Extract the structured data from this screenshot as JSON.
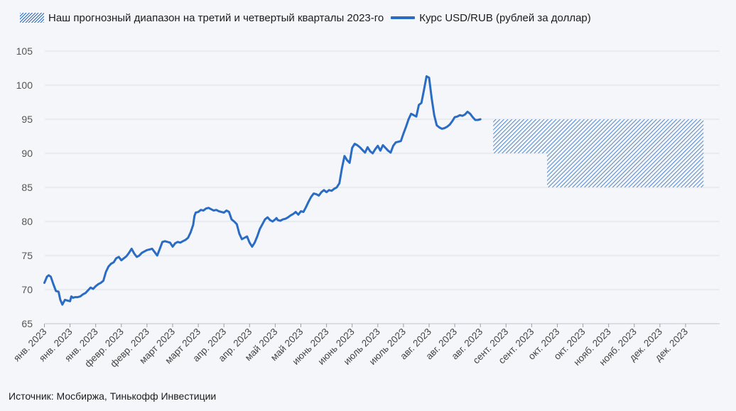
{
  "chart_data": {
    "type": "line",
    "title": "",
    "xlabel": "",
    "ylabel": "",
    "ylim": [
      65,
      105
    ],
    "yticks": [
      65,
      70,
      75,
      80,
      85,
      90,
      95,
      100,
      105
    ],
    "grid": true,
    "legend_position": "top-left",
    "x_tick_labels": [
      "янв. 2023",
      "янв. 2023",
      "янв. 2023",
      "февр. 2023",
      "февр. 2023",
      "март 2023",
      "март 2023",
      "апр. 2023",
      "апр. 2023",
      "май 2023",
      "май 2023",
      "июнь 2023",
      "июнь 2023",
      "июль 2023",
      "июль 2023",
      "авг. 2023",
      "авг. 2023",
      "авг. 2023",
      "сент. 2023",
      "сент. 2023",
      "окт. 2023",
      "окт. 2023",
      "нояб. 2023",
      "нояб. 2023",
      "дек. 2023",
      "дек. 2023"
    ],
    "series": [
      {
        "name": "Курс USD/RUB (рублей за доллар)",
        "color": "#2a6cc4",
        "x_tick": [
          0.0,
          0.1,
          0.17,
          0.25,
          0.35,
          0.45,
          0.55,
          0.62,
          0.7,
          0.8,
          0.9,
          1.0,
          1.05,
          1.12,
          1.2,
          1.3,
          1.4,
          1.5,
          1.6,
          1.7,
          1.8,
          1.9,
          2.0,
          2.1,
          2.2,
          2.3,
          2.4,
          2.5,
          2.6,
          2.7,
          2.8,
          2.9,
          3.0,
          3.1,
          3.2,
          3.3,
          3.4,
          3.5,
          3.6,
          3.7,
          3.8,
          3.9,
          4.0,
          4.1,
          4.2,
          4.3,
          4.4,
          4.5,
          4.6,
          4.7,
          4.8,
          4.9,
          5.0,
          5.1,
          5.2,
          5.3,
          5.4,
          5.5,
          5.6,
          5.7,
          5.8,
          5.85,
          5.9,
          6.0,
          6.1,
          6.2,
          6.3,
          6.4,
          6.5,
          6.6,
          6.7,
          6.8,
          6.9,
          7.0,
          7.1,
          7.2,
          7.3,
          7.4,
          7.5,
          7.6,
          7.7,
          7.8,
          7.9,
          8.0,
          8.1,
          8.2,
          8.3,
          8.4,
          8.5,
          8.6,
          8.7,
          8.8,
          8.9,
          9.0,
          9.05,
          9.1,
          9.2,
          9.3,
          9.4,
          9.5,
          9.6,
          9.7,
          9.8,
          9.9,
          10.0,
          10.1,
          10.2,
          10.3,
          10.4,
          10.5,
          10.6,
          10.7,
          10.8,
          10.9,
          11.0,
          11.1,
          11.2,
          11.3,
          11.4,
          11.5,
          11.6,
          11.7,
          11.8,
          11.9,
          12.0,
          12.1,
          12.2,
          12.3,
          12.4,
          12.5,
          12.6,
          12.7,
          12.8,
          12.9,
          13.0,
          13.1,
          13.2,
          13.3,
          13.4,
          13.5,
          13.6,
          13.7,
          13.8,
          13.9,
          14.0,
          14.1,
          14.2,
          14.3,
          14.4,
          14.5,
          14.6,
          14.7,
          14.8,
          14.9,
          15.0,
          15.1,
          15.2,
          15.3,
          15.4,
          15.5,
          15.6,
          15.7,
          15.8,
          15.9,
          16.0,
          16.1,
          16.2,
          16.3,
          16.4,
          16.5,
          16.6,
          16.7,
          16.8,
          16.9,
          17.0,
          17.1,
          17.2,
          17.3,
          17.4
        ],
        "values": [
          71.0,
          71.9,
          72.1,
          71.9,
          70.8,
          69.8,
          69.7,
          68.5,
          67.8,
          68.5,
          68.4,
          68.3,
          69.0,
          68.8,
          68.9,
          68.9,
          69.0,
          69.3,
          69.5,
          69.9,
          70.3,
          70.1,
          70.5,
          70.8,
          71.0,
          71.3,
          72.6,
          73.4,
          73.8,
          74.0,
          74.6,
          74.8,
          74.3,
          74.6,
          74.9,
          75.4,
          76.0,
          75.3,
          74.8,
          75.0,
          75.4,
          75.6,
          75.8,
          75.9,
          76.0,
          75.5,
          75.0,
          76.0,
          77.0,
          77.1,
          77.0,
          76.9,
          76.3,
          76.8,
          77.0,
          76.9,
          77.1,
          77.3,
          77.6,
          78.4,
          79.5,
          80.8,
          81.3,
          81.4,
          81.7,
          81.6,
          81.9,
          82.0,
          81.8,
          81.6,
          81.7,
          81.5,
          81.4,
          81.3,
          81.6,
          81.4,
          80.3,
          80.0,
          79.6,
          78.2,
          77.4,
          77.6,
          77.8,
          76.9,
          76.3,
          76.9,
          77.8,
          78.9,
          79.6,
          80.3,
          80.6,
          80.2,
          80.0,
          80.3,
          80.5,
          80.2,
          80.1,
          80.3,
          80.4,
          80.6,
          80.9,
          81.1,
          81.4,
          81.0,
          81.5,
          81.4,
          82.1,
          82.9,
          83.6,
          84.1,
          84.0,
          83.8,
          84.3,
          84.6,
          84.3,
          84.6,
          84.5,
          84.8,
          85.0,
          85.6,
          87.8,
          89.6,
          89.0,
          88.6,
          90.8,
          91.4,
          91.2,
          90.9,
          90.5,
          90.1,
          90.9,
          90.3,
          90.0,
          90.6,
          91.1,
          90.4,
          91.2,
          90.8,
          90.4,
          90.1,
          91.1,
          91.6,
          91.7,
          91.8,
          92.9,
          93.9,
          95.0,
          95.8,
          95.6,
          95.4,
          97.1,
          97.4,
          99.3,
          101.3,
          101.1,
          98.1,
          95.6,
          94.1,
          93.8,
          93.6,
          93.7,
          93.9,
          94.2,
          94.7,
          95.3,
          95.4,
          95.6,
          95.5,
          95.7,
          96.1,
          95.8,
          95.3,
          94.9,
          94.9,
          95.0
        ]
      }
    ],
    "forecast_bands": [
      {
        "name": "Наш прогнозный диапазон на третий и четвертый кварталы 2023-го",
        "x_start_tick": 17.5,
        "x_end_tick": 19.6,
        "y_low": 90,
        "y_high": 95
      },
      {
        "name": "Наш прогнозный диапазон на третий и четвертый кварталы 2023-го",
        "x_start_tick": 19.6,
        "x_end_tick": 25.7,
        "y_low": 85,
        "y_high": 95
      }
    ]
  },
  "legend": {
    "band_label": "Наш прогнозный диапазон на третий и четвертый кварталы 2023-го",
    "line_label": "Курс USD/RUB (рублей за доллар)"
  },
  "source": "Источник: Мосбиржа, Тинькофф Инвестиции"
}
